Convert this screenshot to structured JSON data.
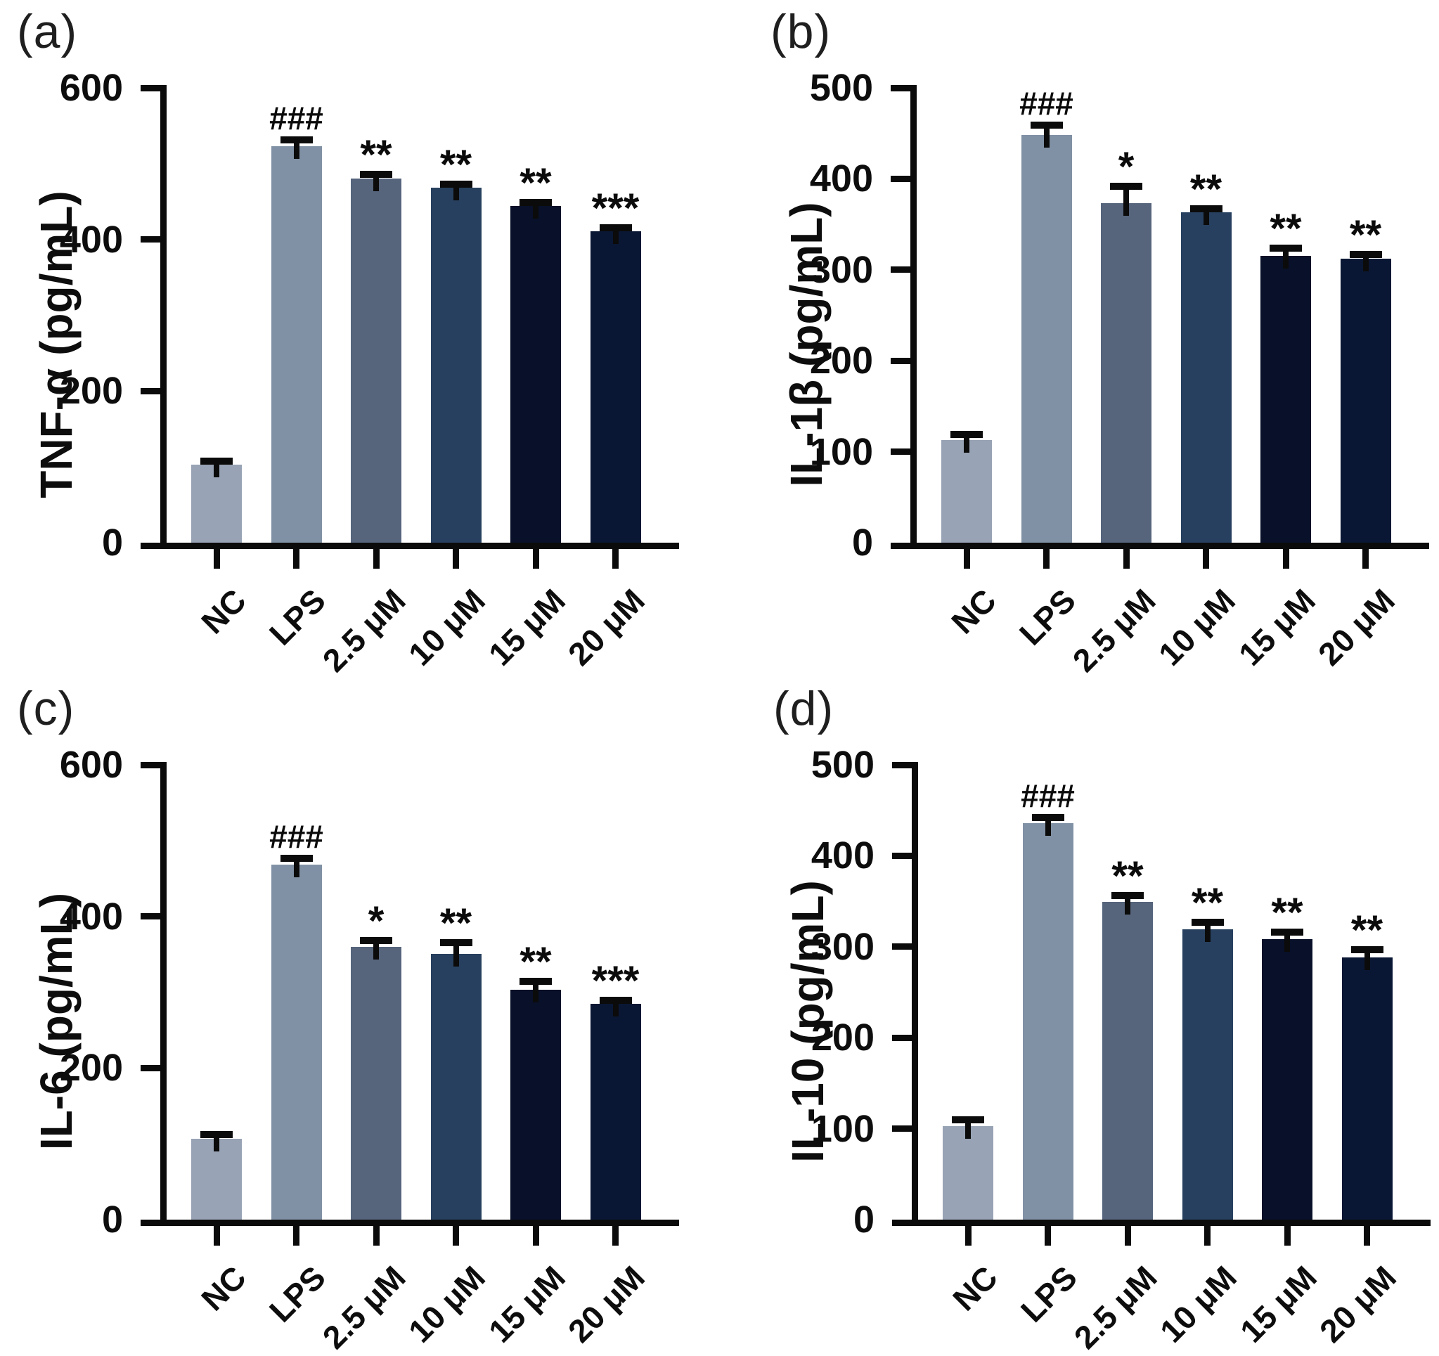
{
  "style": {
    "background": "#ffffff",
    "axis_color": "#0b0b0b",
    "text_color": "#0d0d0d",
    "bar_colors": [
      "#98a3b5",
      "#8191a5",
      "#56647c",
      "#27405f",
      "#081129",
      "#0a1734"
    ]
  },
  "chart_data": [
    {
      "type": "bar",
      "panel_label": "(a)",
      "ylabel": "TNF-α (pg/mL)",
      "xlabel": "",
      "ylim": [
        0,
        600
      ],
      "yticks": [
        0,
        200,
        400,
        600
      ],
      "categories": [
        "NC",
        "LPS",
        "2.5 μM",
        "10 μM",
        "15 μM",
        "20 μM"
      ],
      "values": [
        103,
        523,
        480,
        468,
        444,
        411
      ],
      "errors": [
        5,
        8,
        6,
        5,
        5,
        4
      ],
      "significance": [
        "",
        "###",
        "**",
        "**",
        "**",
        "***"
      ],
      "grid": false,
      "legend": false
    },
    {
      "type": "bar",
      "panel_label": "(b)",
      "ylabel": "IL-1β (pg/mL)",
      "xlabel": "",
      "ylim": [
        0,
        500
      ],
      "yticks": [
        0,
        100,
        200,
        300,
        400,
        500
      ],
      "categories": [
        "NC",
        "LPS",
        "2.5 μM",
        "10 μM",
        "15 μM",
        "20 μM"
      ],
      "values": [
        113,
        448,
        373,
        363,
        315,
        312
      ],
      "errors": [
        6,
        11,
        19,
        4,
        9,
        5
      ],
      "significance": [
        "",
        "###",
        "*",
        "**",
        "**",
        "**"
      ],
      "grid": false,
      "legend": false
    },
    {
      "type": "bar",
      "panel_label": "(c)",
      "ylabel": "IL-6 (pg/mL)",
      "xlabel": "",
      "ylim": [
        0,
        600
      ],
      "yticks": [
        0,
        200,
        400,
        600
      ],
      "categories": [
        "NC",
        "LPS",
        "2.5 μM",
        "10 μM",
        "15 μM",
        "20 μM"
      ],
      "values": [
        107,
        468,
        360,
        351,
        303,
        285
      ],
      "errors": [
        5,
        9,
        8,
        14,
        11,
        4
      ],
      "significance": [
        "",
        "###",
        "*",
        "**",
        "**",
        "***"
      ],
      "grid": false,
      "legend": false
    },
    {
      "type": "bar",
      "panel_label": "(d)",
      "ylabel": "IL-10 (pg/mL)",
      "xlabel": "",
      "ylim": [
        0,
        500
      ],
      "yticks": [
        0,
        100,
        200,
        300,
        400,
        500
      ],
      "categories": [
        "NC",
        "LPS",
        "2.5 μM",
        "10 μM",
        "15 μM",
        "20 μM"
      ],
      "values": [
        103,
        436,
        349,
        319,
        308,
        288
      ],
      "errors": [
        7,
        6,
        7,
        8,
        8,
        9
      ],
      "significance": [
        "",
        "###",
        "**",
        "**",
        "**",
        "**"
      ],
      "grid": false,
      "legend": false
    }
  ]
}
